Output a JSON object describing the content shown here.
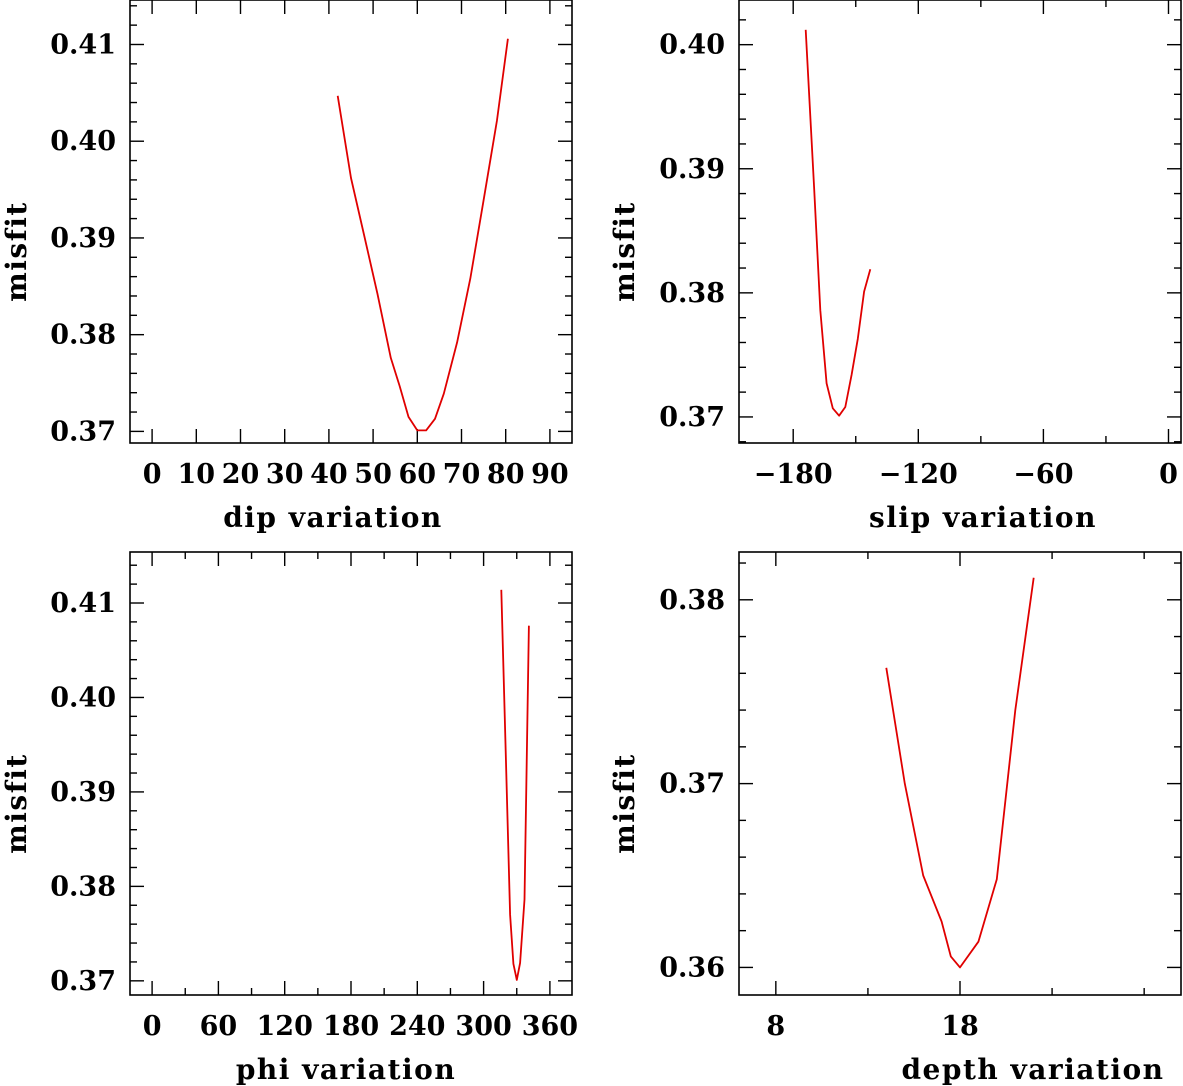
{
  "chart_data": [
    {
      "type": "line",
      "xlabel": "dip    variation",
      "ylabel": "misfit",
      "xlim": [
        -5,
        95
      ],
      "ylim": [
        0.3688,
        0.4146
      ],
      "xticks_major": [
        0,
        10,
        20,
        30,
        40,
        50,
        60,
        70,
        80,
        90
      ],
      "xticks_minor": [],
      "yticks_major": [
        0.37,
        0.38,
        0.39,
        0.4,
        0.41
      ],
      "xtick_labels": [
        "0",
        "10",
        "20",
        "30",
        "40",
        "50",
        "60",
        "70",
        "80",
        "90"
      ],
      "ytick_labels": [
        "0.37",
        "0.38",
        "0.39",
        "0.40",
        "0.41"
      ],
      "series": [
        {
          "name": "dip",
          "color": "#e00000",
          "x": [
            42,
            45,
            48,
            51,
            54,
            56,
            58,
            60,
            62,
            64,
            66,
            69,
            72,
            75,
            78,
            80.5
          ],
          "y": [
            0.4047,
            0.3962,
            0.3902,
            0.3842,
            0.3776,
            0.3747,
            0.3715,
            0.3701,
            0.3701,
            0.3713,
            0.3739,
            0.3792,
            0.3858,
            0.3939,
            0.4021,
            0.4106
          ]
        }
      ]
    },
    {
      "type": "line",
      "xlabel": "slip   variation",
      "ylabel": "misfit",
      "xlim": [
        -206,
        6
      ],
      "ylim": [
        0.3679,
        0.4036
      ],
      "xticks_major": [
        -180,
        -120,
        -60,
        0
      ],
      "xticks_minor": [
        -150,
        -90,
        -30
      ],
      "yticks_major": [
        0.37,
        0.38,
        0.39,
        0.4
      ],
      "xtick_labels": [
        "−180",
        "−120",
        "−60",
        "0"
      ],
      "ytick_labels": [
        "0.37",
        "0.38",
        "0.39",
        "0.40"
      ],
      "series": [
        {
          "name": "slip",
          "color": "#e00000",
          "x": [
            -174,
            -170,
            -167,
            -164,
            -161,
            -158,
            -155,
            -152,
            -149,
            -146,
            -143
          ],
          "y": [
            0.4012,
            0.3885,
            0.3786,
            0.3727,
            0.3707,
            0.3701,
            0.3708,
            0.3734,
            0.3763,
            0.3801,
            0.3819
          ]
        }
      ]
    },
    {
      "type": "line",
      "xlabel": "phi    variation",
      "ylabel": "misfit",
      "xlim": [
        -20,
        380
      ],
      "ylim": [
        0.3685,
        0.4154
      ],
      "xticks_major": [
        0,
        60,
        120,
        180,
        240,
        300,
        360
      ],
      "xticks_minor": [
        30,
        90,
        150,
        210,
        270,
        330
      ],
      "yticks_major": [
        0.37,
        0.38,
        0.39,
        0.4,
        0.41
      ],
      "xtick_labels": [
        "0",
        "60",
        "120",
        "180",
        "240",
        "300",
        "360"
      ],
      "ytick_labels": [
        "0.37",
        "0.38",
        "0.39",
        "0.40",
        "0.41"
      ],
      "series": [
        {
          "name": "phi",
          "color": "#e00000",
          "x": [
            316,
            320,
            324,
            327,
            330,
            333,
            337,
            341
          ],
          "y": [
            0.4114,
            0.3943,
            0.377,
            0.3718,
            0.3701,
            0.3719,
            0.3786,
            0.4076
          ]
        }
      ]
    },
    {
      "type": "line",
      "xlabel": "depth  variation",
      "ylabel": "misfit",
      "xlim": [
        6,
        30
      ],
      "ylim": [
        0.3585,
        0.3826
      ],
      "xticks_major": [
        8,
        18
      ],
      "xticks_minor": [
        13,
        23,
        28
      ],
      "yticks_major": [
        0.36,
        0.37,
        0.38
      ],
      "xtick_labels": [
        "8",
        "18"
      ],
      "ytick_labels": [
        "0.36",
        "0.37",
        "0.38"
      ],
      "series": [
        {
          "name": "depth",
          "color": "#e00000",
          "x": [
            14,
            15,
            16,
            17,
            17.5,
            18,
            19,
            20,
            21,
            22
          ],
          "y": [
            0.3763,
            0.37,
            0.365,
            0.3625,
            0.3606,
            0.36,
            0.3614,
            0.3648,
            0.374,
            0.3812
          ]
        }
      ]
    }
  ]
}
